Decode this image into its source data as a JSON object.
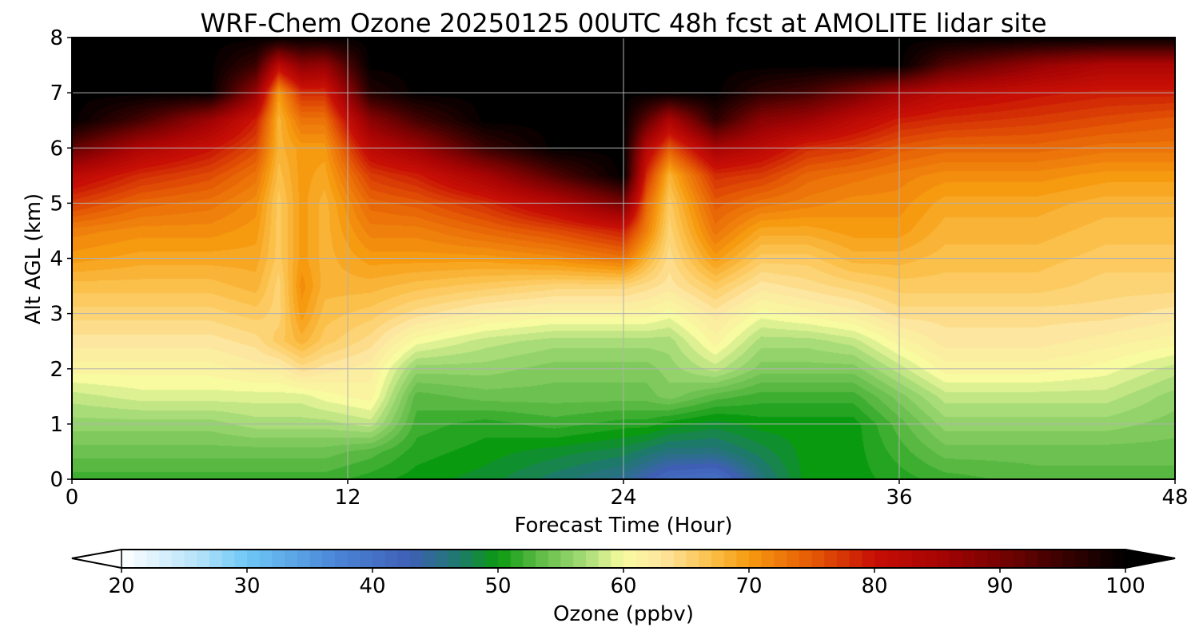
{
  "chart_data": {
    "type": "heatmap",
    "title": "WRF-Chem Ozone  20250125 00UTC 48h fcst at AMOLITE lidar site",
    "xlabel": "Forecast Time (Hour)",
    "ylabel": "Alt AGL (km)",
    "x_range": [
      0,
      48
    ],
    "y_range": [
      0,
      8
    ],
    "x_ticks": [
      0,
      12,
      24,
      36,
      48
    ],
    "y_ticks": [
      0,
      1,
      2,
      3,
      4,
      5,
      6,
      7,
      8
    ],
    "grid": true,
    "colorbar": {
      "label": "Ozone  (ppbv)",
      "range": [
        20,
        100
      ],
      "ticks": [
        20,
        30,
        40,
        50,
        60,
        70,
        80,
        90,
        100
      ],
      "extend": "both",
      "color_stops": [
        {
          "value": 20,
          "color": "#ffffff"
        },
        {
          "value": 26,
          "color": "#b7e3fa"
        },
        {
          "value": 30,
          "color": "#6ec8f5"
        },
        {
          "value": 37,
          "color": "#4b86d8"
        },
        {
          "value": 43,
          "color": "#3f5fb5"
        },
        {
          "value": 47,
          "color": "#1d7a6a"
        },
        {
          "value": 50,
          "color": "#0a9a10"
        },
        {
          "value": 53,
          "color": "#58b842"
        },
        {
          "value": 57,
          "color": "#a8dc78"
        },
        {
          "value": 60,
          "color": "#f8fba0"
        },
        {
          "value": 63,
          "color": "#fde7a0"
        },
        {
          "value": 67,
          "color": "#fbc04a"
        },
        {
          "value": 70,
          "color": "#f69a10"
        },
        {
          "value": 75,
          "color": "#e55a05"
        },
        {
          "value": 80,
          "color": "#c70f05"
        },
        {
          "value": 85,
          "color": "#a80404"
        },
        {
          "value": 90,
          "color": "#770202"
        },
        {
          "value": 95,
          "color": "#3a0101"
        },
        {
          "value": 100,
          "color": "#000000"
        }
      ]
    },
    "field": {
      "x": [
        0,
        3,
        6,
        8,
        9,
        10,
        11,
        13,
        15,
        18,
        21,
        24,
        25,
        26,
        28,
        30,
        32,
        34,
        36,
        38,
        42,
        45,
        48
      ],
      "y": [
        0,
        0.5,
        1,
        1.5,
        2,
        2.5,
        3,
        3.5,
        4,
        4.5,
        5,
        5.5,
        6,
        6.5,
        7,
        7.5,
        8
      ],
      "z": [
        [
          52,
          52,
          52,
          52,
          52,
          52,
          52,
          51,
          50,
          49,
          47,
          45,
          43,
          41,
          40,
          46,
          50,
          50,
          51,
          52,
          53,
          53,
          53
        ],
        [
          54,
          54,
          54,
          54,
          54,
          54,
          54,
          53,
          51,
          50,
          49,
          48,
          47,
          46,
          46,
          48,
          50,
          50,
          52,
          54,
          54,
          54,
          54
        ],
        [
          56,
          56,
          56,
          57,
          57,
          57,
          57,
          58,
          52,
          51,
          52,
          51,
          51,
          50,
          49,
          50,
          50,
          50,
          53,
          56,
          56,
          56,
          55
        ],
        [
          58,
          59,
          59,
          59,
          59,
          59,
          60,
          61,
          53,
          54,
          54,
          54,
          54,
          55,
          53,
          52,
          52,
          52,
          55,
          58,
          58,
          58,
          56
        ],
        [
          61,
          61,
          61,
          62,
          62,
          64,
          63,
          62,
          56,
          56,
          55,
          55,
          55,
          56,
          58,
          55,
          55,
          55,
          58,
          61,
          61,
          60,
          58
        ],
        [
          63,
          63,
          63,
          64,
          66,
          68,
          66,
          64,
          60,
          58,
          57,
          57,
          57,
          57,
          61,
          57,
          57,
          58,
          61,
          63,
          63,
          62,
          61
        ],
        [
          65,
          65,
          65,
          66,
          65,
          70,
          67,
          66,
          64,
          62,
          61,
          61,
          61,
          60,
          63,
          60,
          61,
          62,
          64,
          64,
          64,
          64,
          63
        ],
        [
          67,
          67,
          67,
          68,
          65,
          71,
          68,
          68,
          67,
          66,
          65,
          65,
          64,
          63,
          66,
          63,
          64,
          65,
          66,
          66,
          66,
          65,
          65
        ],
        [
          70,
          69,
          69,
          69,
          66,
          70,
          68,
          70,
          70,
          70,
          71,
          73,
          68,
          64,
          70,
          66,
          66,
          68,
          68,
          67,
          67,
          66,
          66
        ],
        [
          72,
          71,
          71,
          70,
          66,
          70,
          68,
          72,
          72,
          74,
          76,
          79,
          72,
          65,
          73,
          69,
          69,
          70,
          70,
          68,
          68,
          67,
          67
        ],
        [
          77,
          74,
          73,
          71,
          66,
          70,
          68,
          74,
          75,
          78,
          83,
          90,
          74,
          66,
          75,
          73,
          72,
          71,
          71,
          69,
          69,
          68,
          68
        ],
        [
          82,
          78,
          76,
          73,
          67,
          70,
          69,
          77,
          79,
          85,
          93,
          100,
          78,
          68,
          78,
          77,
          74,
          73,
          72,
          71,
          71,
          70,
          70
        ],
        [
          92,
          84,
          80,
          76,
          68,
          70,
          70,
          82,
          86,
          95,
          100,
          100,
          83,
          75,
          85,
          82,
          78,
          77,
          75,
          74,
          74,
          73,
          73
        ],
        [
          100,
          94,
          86,
          79,
          68,
          73,
          73,
          88,
          94,
          100,
          100,
          100,
          92,
          84,
          96,
          88,
          86,
          82,
          79,
          78,
          77,
          76,
          75
        ],
        [
          100,
          100,
          100,
          87,
          70,
          78,
          78,
          97,
          100,
          100,
          100,
          100,
          100,
          100,
          100,
          96,
          94,
          90,
          85,
          82,
          80,
          79,
          79
        ],
        [
          100,
          100,
          100,
          95,
          82,
          88,
          87,
          100,
          100,
          100,
          100,
          100,
          100,
          100,
          100,
          100,
          100,
          100,
          100,
          93,
          87,
          84,
          84
        ],
        [
          100,
          100,
          100,
          100,
          100,
          100,
          100,
          100,
          100,
          100,
          100,
          100,
          100,
          100,
          100,
          100,
          100,
          100,
          100,
          100,
          100,
          100,
          100
        ]
      ]
    }
  }
}
